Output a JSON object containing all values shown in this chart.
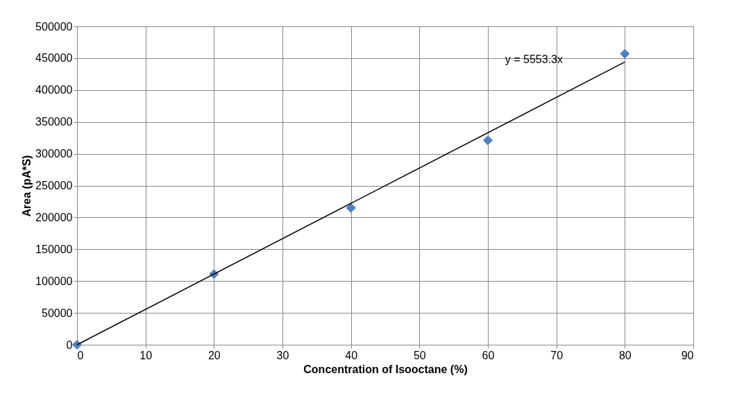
{
  "chart_data": {
    "type": "scatter",
    "xlabel": "Concentration of Isooctane (%)",
    "ylabel": "Area (pA*S)",
    "x": [
      0,
      20,
      40,
      60,
      80
    ],
    "series": [
      {
        "color": "#4f81bd",
        "marker": "diamond",
        "values": [
          0,
          111000,
          215000,
          321000,
          457000
        ]
      },
      {
        "type": "line",
        "color": "#000000",
        "x": [
          0,
          80
        ],
        "values": [
          0,
          444000
        ],
        "line_style": "solid"
      }
    ],
    "annotations": [
      "y = 5553.3x"
    ],
    "xlim": [
      0,
      90
    ],
    "xticks": [
      0,
      10,
      20,
      30,
      40,
      50,
      60,
      70,
      80,
      90
    ],
    "ylim": [
      0,
      500000
    ],
    "yticks": [
      0,
      50000,
      100000,
      150000,
      200000,
      250000,
      300000,
      350000,
      400000,
      450000,
      500000
    ],
    "grid": true
  }
}
